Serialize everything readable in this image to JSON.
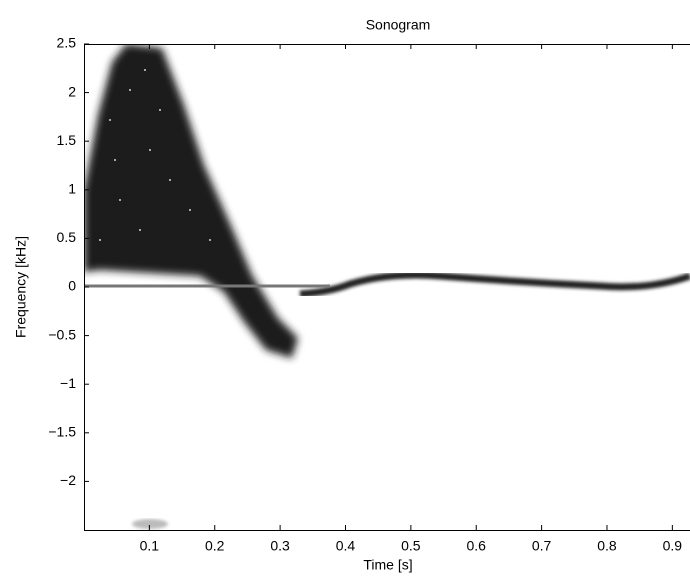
{
  "chart_data": {
    "type": "spectrogram",
    "title": "Sonogram",
    "x_label": "Time [s]",
    "y_label": "Frequency [kHz]",
    "xlim": [
      0,
      0.927
    ],
    "ylim": [
      -2.5,
      2.5
    ],
    "xticks": [
      0.1,
      0.2,
      0.3,
      0.4,
      0.5,
      0.6,
      0.7,
      0.8,
      0.9
    ],
    "yticks": [
      {
        "value": -2,
        "label": "−2"
      },
      {
        "value": -1.5,
        "label": "−1.5"
      },
      {
        "value": -1,
        "label": "−1"
      },
      {
        "value": -0.5,
        "label": "−0.5"
      },
      0,
      0.5,
      1,
      1.5,
      2,
      2.5
    ],
    "colormap": "gray"
  }
}
